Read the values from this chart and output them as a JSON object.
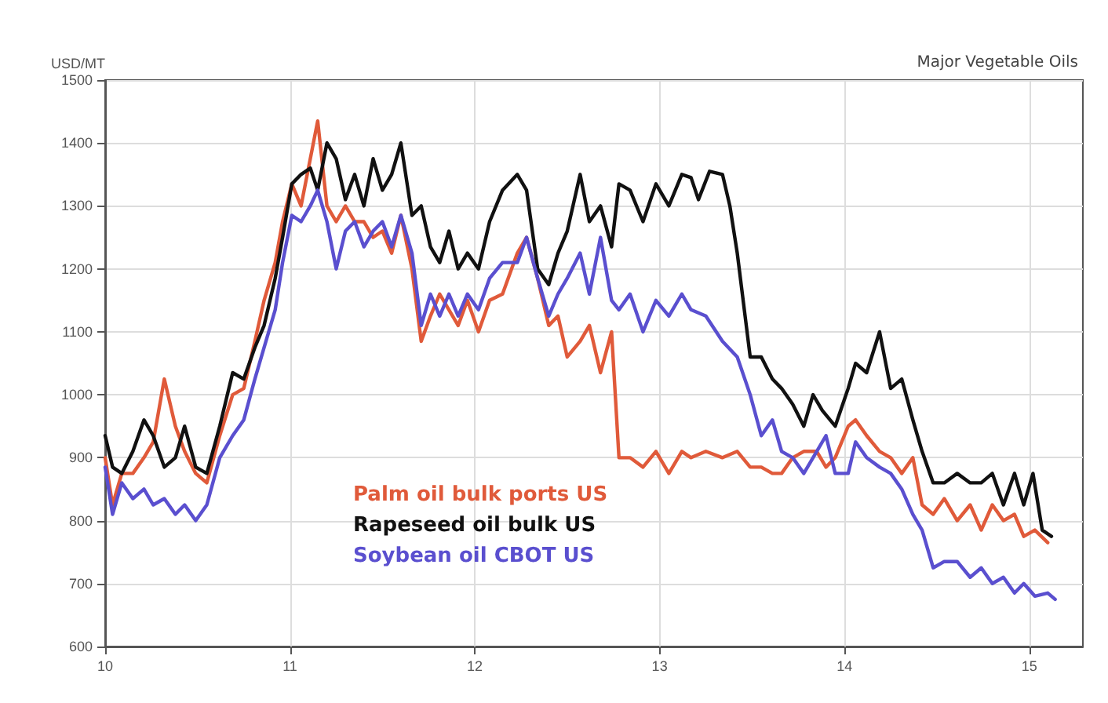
{
  "chart_data": {
    "type": "line",
    "subtitle": "Major Vegetable Oils",
    "ylabel": "USD/MT",
    "xlim": [
      2010,
      2015.29
    ],
    "xticks": [
      {
        "value": 2010,
        "label": "10"
      },
      {
        "value": 2011,
        "label": "11"
      },
      {
        "value": 2012,
        "label": "12"
      },
      {
        "value": 2013,
        "label": "13"
      },
      {
        "value": 2014,
        "label": "14"
      },
      {
        "value": 2015,
        "label": "15"
      }
    ],
    "ylim": [
      600,
      1500
    ],
    "yticks": [
      600,
      700,
      800,
      900,
      1000,
      1100,
      1200,
      1300,
      1400,
      1500
    ],
    "grid": true,
    "legend": "bottom",
    "marker": "none",
    "line_style": "solid",
    "series": [
      {
        "name": "Palm oil bulk ports US",
        "color": "#e05a3a",
        "x": [
          2010.0,
          2010.04,
          2010.09,
          2010.15,
          2010.21,
          2010.26,
          2010.32,
          2010.38,
          2010.43,
          2010.49,
          2010.55,
          2010.62,
          2010.69,
          2010.75,
          2010.81,
          2010.86,
          2010.92,
          2010.96,
          2011.01,
          2011.06,
          2011.11,
          2011.15,
          2011.2,
          2011.25,
          2011.3,
          2011.35,
          2011.4,
          2011.45,
          2011.5,
          2011.55,
          2011.6,
          2011.66,
          2011.71,
          2011.76,
          2011.81,
          2011.86,
          2011.91,
          2011.96,
          2012.02,
          2012.08,
          2012.15,
          2012.23,
          2012.28,
          2012.34,
          2012.4,
          2012.45,
          2012.5,
          2012.57,
          2012.62,
          2012.68,
          2012.74,
          2012.78,
          2012.84,
          2012.91,
          2012.98,
          2013.05,
          2013.12,
          2013.17,
          2013.25,
          2013.34,
          2013.42,
          2013.49,
          2013.55,
          2013.61,
          2013.66,
          2013.72,
          2013.78,
          2013.85,
          2013.9,
          2013.95,
          2014.02,
          2014.06,
          2014.12,
          2014.19,
          2014.25,
          2014.31,
          2014.37,
          2014.42,
          2014.48,
          2014.54,
          2014.61,
          2014.68,
          2014.74,
          2014.8,
          2014.86,
          2014.92,
          2014.97,
          2015.03,
          2015.1
        ],
        "values": [
          900,
          825,
          875,
          875,
          900,
          925,
          1025,
          950,
          910,
          875,
          860,
          935,
          1000,
          1010,
          1085,
          1150,
          1210,
          1275,
          1335,
          1300,
          1375,
          1435,
          1300,
          1275,
          1300,
          1275,
          1275,
          1250,
          1260,
          1225,
          1285,
          1200,
          1085,
          1125,
          1160,
          1135,
          1110,
          1150,
          1100,
          1150,
          1160,
          1225,
          1250,
          1185,
          1110,
          1125,
          1060,
          1085,
          1110,
          1035,
          1100,
          900,
          900,
          885,
          910,
          875,
          910,
          900,
          910,
          900,
          910,
          885,
          885,
          875,
          875,
          900,
          910,
          910,
          885,
          900,
          950,
          960,
          935,
          910,
          900,
          875,
          900,
          825,
          810,
          835,
          800,
          825,
          785,
          825,
          800,
          810,
          775,
          785,
          765
        ]
      },
      {
        "name": "Rapeseed oil bulk US",
        "color": "#111111",
        "x": [
          2010.0,
          2010.04,
          2010.09,
          2010.15,
          2010.21,
          2010.26,
          2010.32,
          2010.38,
          2010.43,
          2010.49,
          2010.55,
          2010.62,
          2010.69,
          2010.75,
          2010.81,
          2010.86,
          2010.92,
          2010.96,
          2011.01,
          2011.06,
          2011.11,
          2011.15,
          2011.2,
          2011.25,
          2011.3,
          2011.35,
          2011.4,
          2011.45,
          2011.5,
          2011.55,
          2011.6,
          2011.66,
          2011.71,
          2011.76,
          2011.81,
          2011.86,
          2011.91,
          2011.96,
          2012.02,
          2012.08,
          2012.15,
          2012.23,
          2012.28,
          2012.34,
          2012.4,
          2012.45,
          2012.5,
          2012.57,
          2012.62,
          2012.68,
          2012.74,
          2012.78,
          2012.84,
          2012.91,
          2012.98,
          2013.05,
          2013.12,
          2013.17,
          2013.21,
          2013.27,
          2013.34,
          2013.38,
          2013.42,
          2013.49,
          2013.55,
          2013.61,
          2013.66,
          2013.72,
          2013.78,
          2013.83,
          2013.88,
          2013.95,
          2014.02,
          2014.06,
          2014.12,
          2014.19,
          2014.25,
          2014.31,
          2014.37,
          2014.42,
          2014.48,
          2014.54,
          2014.61,
          2014.68,
          2014.74,
          2014.8,
          2014.86,
          2014.92,
          2014.97,
          2015.02,
          2015.07,
          2015.12
        ],
        "values": [
          935,
          885,
          875,
          910,
          960,
          935,
          885,
          900,
          950,
          885,
          875,
          950,
          1035,
          1025,
          1075,
          1110,
          1185,
          1250,
          1335,
          1350,
          1360,
          1325,
          1400,
          1375,
          1310,
          1350,
          1300,
          1375,
          1325,
          1350,
          1400,
          1285,
          1300,
          1235,
          1210,
          1260,
          1200,
          1225,
          1200,
          1275,
          1325,
          1350,
          1325,
          1200,
          1175,
          1225,
          1260,
          1350,
          1275,
          1300,
          1235,
          1335,
          1325,
          1275,
          1335,
          1300,
          1350,
          1345,
          1310,
          1355,
          1350,
          1300,
          1225,
          1060,
          1060,
          1025,
          1010,
          985,
          950,
          1000,
          975,
          950,
          1010,
          1050,
          1035,
          1100,
          1010,
          1025,
          960,
          910,
          860,
          860,
          875,
          860,
          860,
          875,
          825,
          875,
          825,
          875,
          785,
          775
        ]
      },
      {
        "name": "Soybean oil CBOT US",
        "color": "#5a4fcf",
        "x": [
          2010.0,
          2010.04,
          2010.09,
          2010.15,
          2010.21,
          2010.26,
          2010.32,
          2010.38,
          2010.43,
          2010.49,
          2010.55,
          2010.62,
          2010.69,
          2010.75,
          2010.81,
          2010.86,
          2010.92,
          2010.96,
          2011.01,
          2011.06,
          2011.11,
          2011.15,
          2011.2,
          2011.25,
          2011.3,
          2011.35,
          2011.4,
          2011.45,
          2011.5,
          2011.55,
          2011.6,
          2011.66,
          2011.71,
          2011.76,
          2011.81,
          2011.86,
          2011.91,
          2011.96,
          2012.02,
          2012.08,
          2012.15,
          2012.23,
          2012.28,
          2012.34,
          2012.4,
          2012.45,
          2012.5,
          2012.57,
          2012.62,
          2012.68,
          2012.74,
          2012.78,
          2012.84,
          2012.91,
          2012.98,
          2013.05,
          2013.12,
          2013.17,
          2013.25,
          2013.34,
          2013.42,
          2013.49,
          2013.55,
          2013.61,
          2013.66,
          2013.72,
          2013.78,
          2013.85,
          2013.9,
          2013.95,
          2014.02,
          2014.06,
          2014.12,
          2014.19,
          2014.25,
          2014.31,
          2014.37,
          2014.42,
          2014.48,
          2014.54,
          2014.61,
          2014.68,
          2014.74,
          2014.8,
          2014.86,
          2014.92,
          2014.97,
          2015.03,
          2015.1,
          2015.14
        ],
        "values": [
          885,
          810,
          860,
          835,
          850,
          825,
          835,
          810,
          825,
          800,
          825,
          900,
          935,
          960,
          1025,
          1075,
          1135,
          1210,
          1285,
          1275,
          1300,
          1325,
          1275,
          1200,
          1260,
          1275,
          1235,
          1260,
          1275,
          1235,
          1285,
          1225,
          1110,
          1160,
          1125,
          1160,
          1125,
          1160,
          1135,
          1185,
          1210,
          1210,
          1250,
          1185,
          1125,
          1160,
          1185,
          1225,
          1160,
          1250,
          1150,
          1135,
          1160,
          1100,
          1150,
          1125,
          1160,
          1135,
          1125,
          1085,
          1060,
          1000,
          935,
          960,
          910,
          900,
          875,
          910,
          935,
          875,
          875,
          925,
          900,
          885,
          875,
          850,
          810,
          785,
          725,
          735,
          735,
          710,
          725,
          700,
          710,
          685,
          700,
          680,
          685,
          675
        ]
      }
    ]
  }
}
